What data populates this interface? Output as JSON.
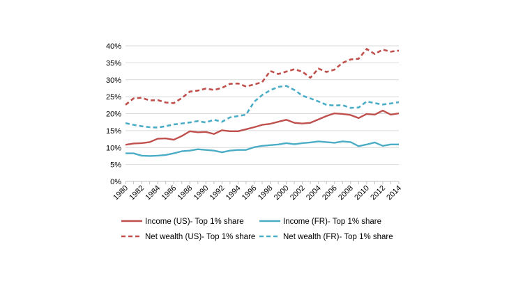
{
  "chart_data": {
    "type": "line",
    "title": "",
    "xlabel": "",
    "ylabel": "",
    "ylim": [
      0,
      40
    ],
    "y_ticks": [
      "0%",
      "5%",
      "10%",
      "15%",
      "20%",
      "25%",
      "30%",
      "35%",
      "40%"
    ],
    "x": [
      1980,
      1981,
      1982,
      1983,
      1984,
      1985,
      1986,
      1987,
      1988,
      1989,
      1990,
      1991,
      1992,
      1993,
      1994,
      1995,
      1996,
      1997,
      1998,
      1999,
      2000,
      2001,
      2002,
      2003,
      2004,
      2005,
      2006,
      2007,
      2008,
      2009,
      2010,
      2011,
      2012,
      2013,
      2014
    ],
    "x_ticks": [
      "1980",
      "1982",
      "1984",
      "1986",
      "1988",
      "1990",
      "1992",
      "1994",
      "1996",
      "1998",
      "2000",
      "2002",
      "2004",
      "2006",
      "2008",
      "2010",
      "2012",
      "2014"
    ],
    "grid": "horizontal",
    "legend_position": "bottom",
    "series": [
      {
        "name": "Income (US)- Top 1% share",
        "color": "#c0504d",
        "dash": "solid",
        "values": [
          10.8,
          11.2,
          11.3,
          11.6,
          12.6,
          12.7,
          12.3,
          13.4,
          14.8,
          14.5,
          14.6,
          14.0,
          15.1,
          14.8,
          14.8,
          15.4,
          16.0,
          16.7,
          17.0,
          17.6,
          18.2,
          17.3,
          17.1,
          17.3,
          18.3,
          19.3,
          20.1,
          19.9,
          19.6,
          18.7,
          19.9,
          19.7,
          20.9,
          19.7,
          20.1
        ]
      },
      {
        "name": "Income (FR)- Top 1% share",
        "color": "#4bacc6",
        "dash": "solid",
        "values": [
          8.3,
          8.3,
          7.6,
          7.5,
          7.6,
          7.8,
          8.3,
          8.9,
          9.1,
          9.5,
          9.3,
          9.1,
          8.6,
          9.1,
          9.3,
          9.3,
          10.1,
          10.5,
          10.7,
          10.9,
          11.3,
          11.0,
          11.3,
          11.5,
          11.8,
          11.6,
          11.4,
          11.8,
          11.6,
          10.4,
          10.9,
          11.5,
          10.5,
          10.9,
          10.9
        ]
      },
      {
        "name": "Net wealth (US)- Top 1% share",
        "color": "#c0504d",
        "dash": "dashed",
        "values": [
          22.6,
          24.5,
          24.7,
          23.9,
          24.0,
          23.3,
          23.1,
          24.6,
          26.5,
          26.8,
          27.4,
          27.0,
          27.6,
          28.8,
          28.9,
          28.0,
          28.6,
          29.3,
          32.6,
          31.7,
          32.4,
          33.1,
          32.4,
          30.6,
          33.3,
          32.3,
          33.0,
          35.0,
          36.0,
          36.2,
          39.1,
          37.6,
          38.9,
          38.3,
          38.6
        ]
      },
      {
        "name": "Net wealth (FR)- Top 1% share",
        "color": "#4bacc6",
        "dash": "dashed",
        "values": [
          17.2,
          16.7,
          16.3,
          16.0,
          15.9,
          16.3,
          16.8,
          17.1,
          17.4,
          17.8,
          17.4,
          18.2,
          17.6,
          18.9,
          19.3,
          19.7,
          23.5,
          25.5,
          26.9,
          27.9,
          28.2,
          27.0,
          25.3,
          24.5,
          23.6,
          22.6,
          22.4,
          22.5,
          21.7,
          21.8,
          23.6,
          23.1,
          22.7,
          23.0,
          23.4
        ]
      }
    ]
  }
}
